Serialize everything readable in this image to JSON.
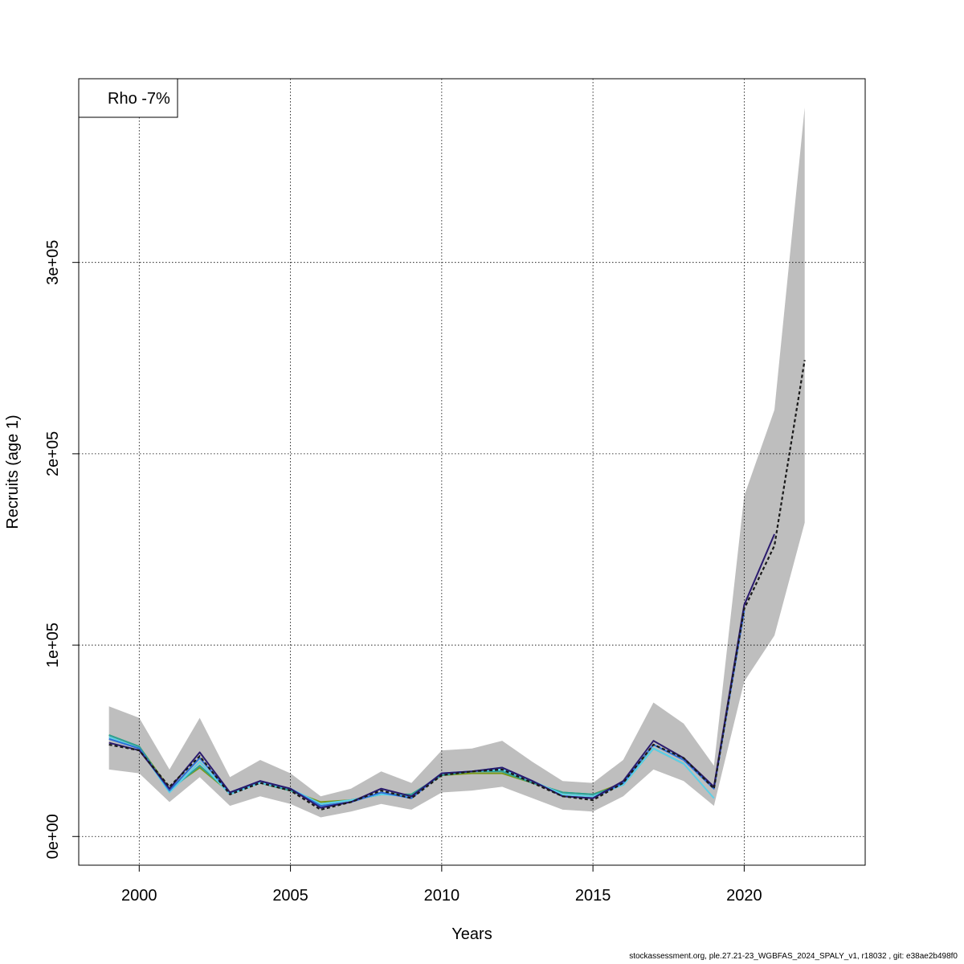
{
  "chart_data": {
    "type": "line",
    "xlabel": "Years",
    "ylabel": "Recruits (age 1)",
    "xlim": [
      1998,
      2024
    ],
    "ylim": [
      -15000,
      396000
    ],
    "x_ticks": [
      2000,
      2005,
      2010,
      2015,
      2020
    ],
    "y_ticks": [
      0,
      100000,
      200000,
      300000
    ],
    "y_tick_labels": [
      "0e+00",
      "1e+05",
      "2e+05",
      "3e+05"
    ],
    "grid": true,
    "legend": {
      "position": "top-left",
      "text": "Rho -7%"
    },
    "confidence_band": {
      "x": [
        1999,
        2000,
        2001,
        2002,
        2003,
        2004,
        2005,
        2006,
        2007,
        2008,
        2009,
        2010,
        2011,
        2012,
        2013,
        2014,
        2015,
        2016,
        2017,
        2018,
        2019,
        2020,
        2021,
        2022
      ],
      "upper": [
        68000,
        62000,
        35000,
        62000,
        31000,
        40000,
        33000,
        21000,
        25000,
        34000,
        28000,
        45000,
        46000,
        50000,
        39000,
        29000,
        28000,
        40000,
        70000,
        59000,
        37000,
        178000,
        223000,
        381000
      ],
      "lower": [
        35000,
        33000,
        18000,
        31000,
        16000,
        21000,
        17000,
        10000,
        13000,
        17000,
        14000,
        23000,
        24000,
        26000,
        20000,
        14000,
        13000,
        21000,
        35000,
        29000,
        16000,
        81000,
        105000,
        164000
      ],
      "color": "#bebebe"
    },
    "series": [
      {
        "color": "#1a1a1a",
        "dashed": true,
        "x": [
          1999,
          2000,
          2001,
          2002,
          2003,
          2004,
          2005,
          2006,
          2007,
          2008,
          2009,
          2010,
          2011,
          2012,
          2013,
          2014,
          2015,
          2016,
          2017,
          2018,
          2019,
          2020,
          2021,
          2022
        ],
        "values": [
          48000,
          45000,
          26000,
          42000,
          22000,
          28000,
          24000,
          14000,
          18000,
          24000,
          20000,
          32000,
          34000,
          35000,
          28000,
          21000,
          19000,
          28000,
          48000,
          41000,
          25000,
          119000,
          152000,
          249000
        ]
      },
      {
        "color": "#2a1a6e",
        "x": [
          1999,
          2000,
          2001,
          2002,
          2003,
          2004,
          2005,
          2006,
          2007,
          2008,
          2009,
          2010,
          2011,
          2012,
          2013,
          2014,
          2015,
          2016,
          2017,
          2018,
          2019,
          2020,
          2021
        ],
        "values": [
          49000,
          45000,
          25000,
          44000,
          23000,
          29000,
          25000,
          15000,
          18000,
          25000,
          21000,
          33000,
          34000,
          36000,
          29000,
          21000,
          20000,
          29000,
          50000,
          41000,
          26000,
          121000,
          158000
        ]
      },
      {
        "color": "#2c6fd6",
        "x": [
          1999,
          2000,
          2001,
          2002,
          2003,
          2004,
          2005,
          2006,
          2007,
          2008,
          2009,
          2010,
          2011,
          2012,
          2013,
          2014,
          2015,
          2016,
          2017,
          2018,
          2019,
          2020
        ],
        "values": [
          51000,
          46000,
          24000,
          41000,
          23000,
          29000,
          25000,
          16000,
          18000,
          23000,
          20000,
          33000,
          34000,
          36000,
          29000,
          21000,
          20000,
          28000,
          48000,
          40000,
          25000,
          118000
        ]
      },
      {
        "color": "#5ad0e8",
        "x": [
          1999,
          2000,
          2001,
          2002,
          2003,
          2004,
          2005,
          2006,
          2007,
          2008,
          2009,
          2010,
          2011,
          2012,
          2013,
          2014,
          2015,
          2016,
          2017,
          2018,
          2019
        ],
        "values": [
          52000,
          46000,
          23000,
          39000,
          22000,
          28000,
          25000,
          17000,
          19000,
          22000,
          21000,
          33000,
          34000,
          35000,
          29000,
          22000,
          21000,
          27000,
          46000,
          38000,
          20000
        ]
      },
      {
        "color": "#2aa198",
        "x": [
          1999,
          2000,
          2001,
          2002,
          2003,
          2004,
          2005,
          2006,
          2007,
          2008,
          2009,
          2010,
          2011,
          2012,
          2013,
          2014,
          2015,
          2016,
          2017,
          2018
        ],
        "values": [
          53000,
          47000,
          24000,
          37000,
          23000,
          28000,
          24000,
          17000,
          19000,
          22000,
          22000,
          32000,
          34000,
          34000,
          28000,
          23000,
          22000,
          27000,
          46000,
          38000
        ]
      },
      {
        "color": "#7a9a1a",
        "x": [
          1999,
          2000,
          2001,
          2002,
          2003,
          2004,
          2005,
          2006,
          2007,
          2008,
          2009,
          2010,
          2011,
          2012,
          2013,
          2014,
          2015,
          2016,
          2017
        ],
        "values": [
          53000,
          47000,
          25000,
          36000,
          23000,
          28000,
          24000,
          18000,
          19000,
          22000,
          22000,
          32000,
          33000,
          33000,
          28000,
          23000,
          22000,
          28000,
          46000
        ]
      }
    ]
  },
  "footer": "stockassessment.org, ple.27.21-23_WGBFAS_2024_SPALY_v1, r18032 , git: e38ae2b498f0"
}
